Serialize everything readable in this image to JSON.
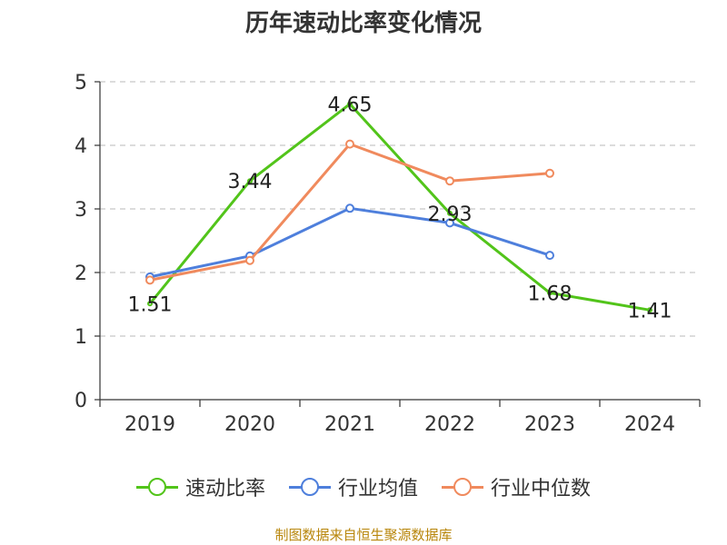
{
  "chart_data": {
    "type": "line",
    "title": "历年速动比率变化情况",
    "categories": [
      "2019",
      "2020",
      "2021",
      "2022",
      "2023",
      "2024"
    ],
    "ylim": [
      0,
      5
    ],
    "yticks": [
      "0",
      "1",
      "2",
      "3",
      "4",
      "5"
    ],
    "grid": true,
    "legend_position": "bottom",
    "series": [
      {
        "name": "速动比率",
        "color": "#52c41a",
        "values": [
          1.51,
          3.44,
          4.65,
          2.93,
          1.68,
          1.41
        ],
        "labels": [
          "1.51",
          "3.44",
          "4.65",
          "2.93",
          "1.68",
          "1.41"
        ]
      },
      {
        "name": "行业均值",
        "color": "#4e7fdc",
        "values": [
          1.93,
          2.26,
          3.01,
          2.78,
          2.27,
          null
        ]
      },
      {
        "name": "行业中位数",
        "color": "#f08a5d",
        "values": [
          1.88,
          2.19,
          4.02,
          3.44,
          3.56,
          null
        ]
      }
    ]
  },
  "source_text": "制图数据来自恒生聚源数据库"
}
